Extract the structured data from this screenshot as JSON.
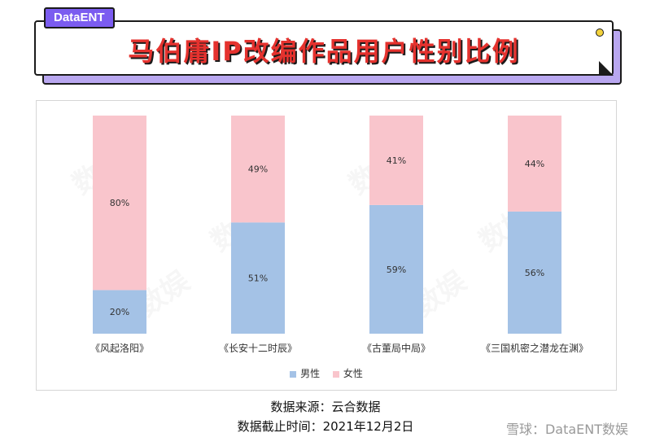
{
  "header": {
    "brand": "DataENT",
    "title": "马伯庸IP改编作品用户性别比例"
  },
  "chart_data": {
    "type": "bar",
    "stacked": true,
    "categories": [
      "《风起洛阳》",
      "《长安十二时辰》",
      "《古董局中局》",
      "《三国机密之潜龙在渊》"
    ],
    "series": [
      {
        "name": "男性",
        "values": [
          20,
          51,
          59,
          56
        ],
        "labels": [
          "20%",
          "51%",
          "59%",
          "56%"
        ],
        "color": "#a4c2e6"
      },
      {
        "name": "女性",
        "values": [
          80,
          49,
          41,
          44
        ],
        "labels": [
          "80%",
          "49%",
          "41%",
          "44%"
        ],
        "color": "#f9c5cc"
      }
    ],
    "ylim": [
      0,
      100
    ],
    "grid": false,
    "legend_position": "bottom"
  },
  "watermark": "数娱",
  "footer": {
    "source": "数据来源：云合数据",
    "cutoff": "数据截止时间：2021年12月2日",
    "mark": "雪球：DataENT数娱"
  }
}
